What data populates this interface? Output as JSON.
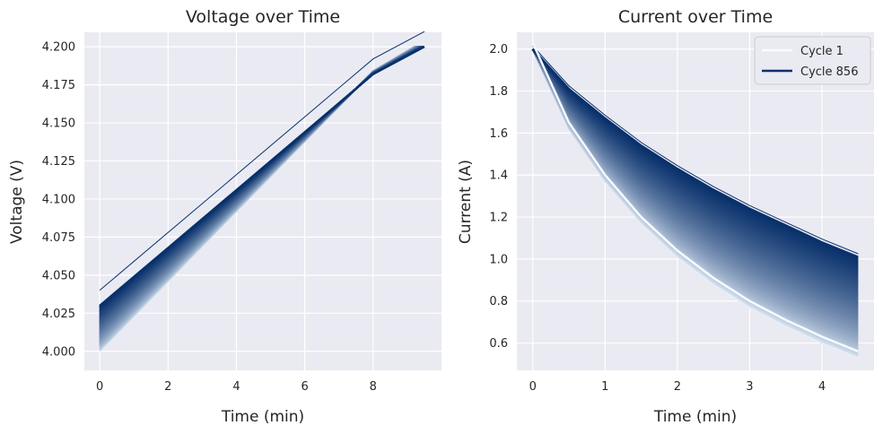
{
  "chart_data": [
    {
      "type": "line",
      "title": "Voltage over Time",
      "xlabel": "Time (min)",
      "ylabel": "Voltage (V)",
      "xlim": [
        -0.45,
        10.0
      ],
      "ylim": [
        3.9875,
        4.2095
      ],
      "xticks": [
        0,
        2,
        4,
        6,
        8
      ],
      "yticks": [
        4.0,
        4.025,
        4.05,
        4.075,
        4.1,
        4.125,
        4.15,
        4.175,
        4.2
      ],
      "ytick_labels": [
        "4.000",
        "4.025",
        "4.050",
        "4.075",
        "4.100",
        "4.125",
        "4.150",
        "4.175",
        "4.200"
      ],
      "grid": true,
      "colormap": "Blues",
      "color_range": [
        "#deebf7",
        "#08306b"
      ],
      "series": [
        {
          "name": "Cycle 1",
          "x": [
            0,
            2,
            4,
            6,
            8,
            9.2
          ],
          "values": [
            4.0,
            4.046,
            4.092,
            4.138,
            4.184,
            4.2
          ]
        },
        {
          "name": "Cycle 856",
          "x": [
            0,
            2,
            4,
            6,
            8,
            9.5
          ],
          "values": [
            4.03,
            4.068,
            4.106,
            4.144,
            4.182,
            4.2
          ]
        }
      ],
      "n_cycles": 856
    },
    {
      "type": "line",
      "title": "Current over Time",
      "xlabel": "Time (min)",
      "ylabel": "Current (A)",
      "xlim": [
        -0.22,
        4.72
      ],
      "ylim": [
        0.47,
        2.08
      ],
      "xticks": [
        0,
        1,
        2,
        3,
        4
      ],
      "yticks": [
        0.6,
        0.8,
        1.0,
        1.2,
        1.4,
        1.6,
        1.8,
        2.0
      ],
      "ytick_labels": [
        "0.6",
        "0.8",
        "1.0",
        "1.2",
        "1.4",
        "1.6",
        "1.8",
        "2.0"
      ],
      "grid": true,
      "legend": {
        "position": "top-right",
        "entries": [
          "Cycle 1",
          "Cycle 856"
        ],
        "colors": [
          "#f7fbff",
          "#08306b"
        ]
      },
      "series": [
        {
          "name": "Cycle 1",
          "x": [
            0,
            0.5,
            1.0,
            1.5,
            2.0,
            2.5,
            3.0,
            3.5,
            4.0,
            4.5
          ],
          "values": [
            2.0,
            1.62,
            1.37,
            1.17,
            1.01,
            0.88,
            0.77,
            0.68,
            0.6,
            0.53
          ]
        },
        {
          "name": "Cycle 856",
          "x": [
            0,
            0.5,
            1.0,
            1.5,
            2.0,
            2.5,
            3.0,
            3.5,
            4.0,
            4.5
          ],
          "values": [
            2.0,
            1.81,
            1.67,
            1.54,
            1.43,
            1.33,
            1.24,
            1.16,
            1.08,
            1.01
          ]
        }
      ],
      "n_cycles": 856
    }
  ]
}
